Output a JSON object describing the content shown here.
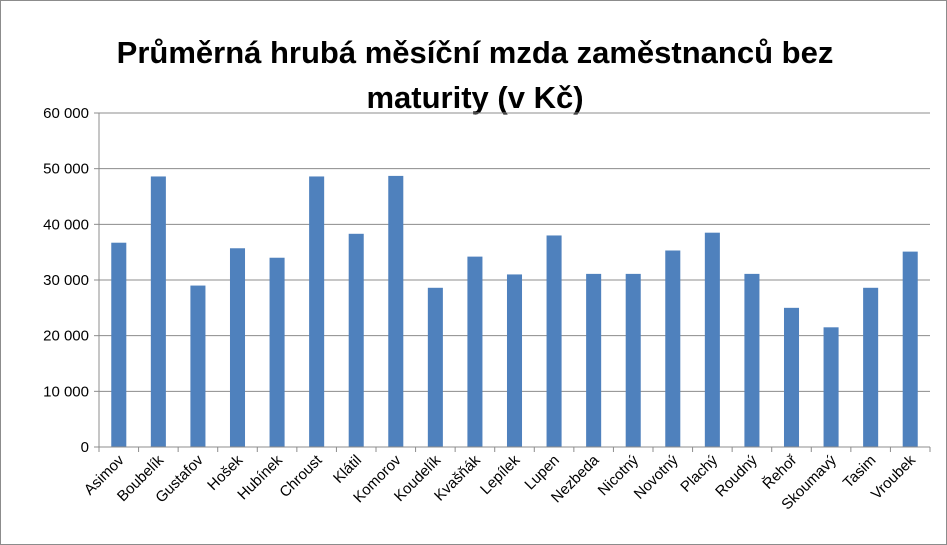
{
  "chart_data": {
    "type": "bar",
    "title": "Průměrná hrubá měsíční mzda zaměstnanců bez maturity (v Kč)",
    "xlabel": "",
    "ylabel": "",
    "ylim": [
      0,
      60000
    ],
    "yticks": [
      "0",
      "10 000",
      "20 000",
      "30 000",
      "40 000",
      "50 000",
      "60 000"
    ],
    "grid": true,
    "legend": "none",
    "bar_color": "#4f81bd",
    "categories": [
      "Asimov",
      "Boubelík",
      "Gustafov",
      "Hošek",
      "Hubínek",
      "Chroust",
      "Klátil",
      "Komorov",
      "Koudelík",
      "Kvašňák",
      "Lepílek",
      "Lupen",
      "Nezbeda",
      "Nicotný",
      "Novotný",
      "Plachý",
      "Roudný",
      "Řehoř",
      "Skoumavý",
      "Tasim",
      "Vroubek"
    ],
    "values": [
      36700,
      48600,
      29000,
      35700,
      34000,
      48600,
      38300,
      48700,
      28600,
      34200,
      31000,
      38000,
      31100,
      31100,
      35300,
      38500,
      31100,
      25000,
      21500,
      28600,
      35100
    ]
  }
}
